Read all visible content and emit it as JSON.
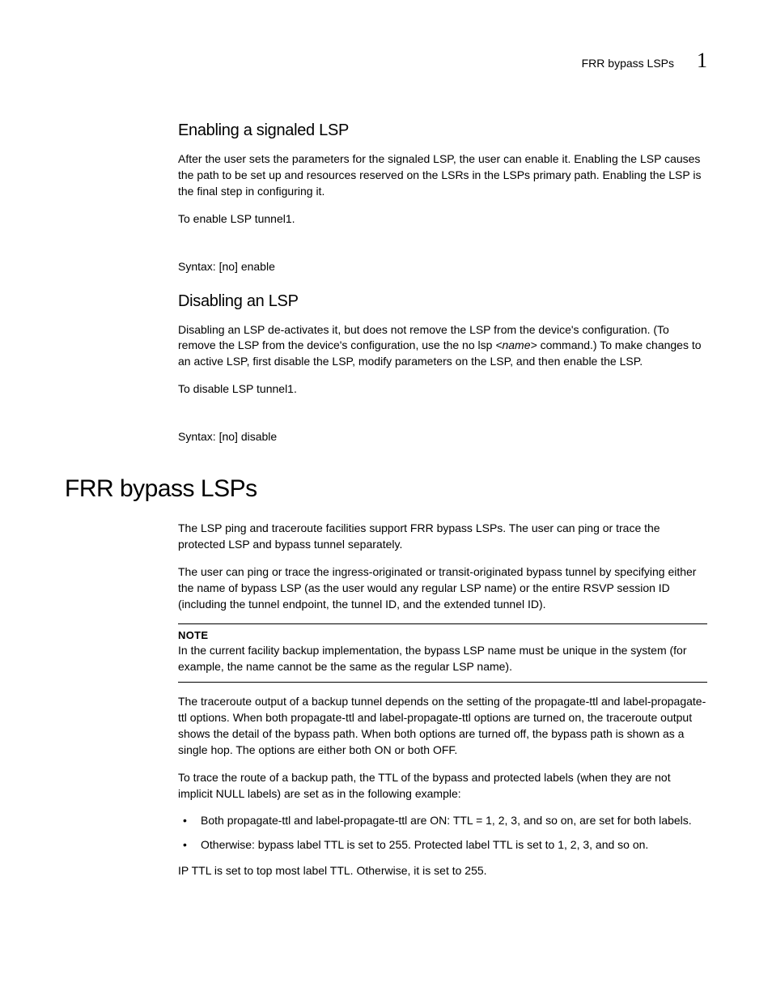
{
  "header": {
    "running_title": "FRR bypass LSPs",
    "chapter_number": "1"
  },
  "section1": {
    "heading": "Enabling a signaled LSP",
    "p1": "After the user sets the parameters for the signaled LSP, the user can enable it. Enabling the LSP causes the path to be set up and resources reserved on the LSRs in the LSPs primary path. Enabling the LSP is the final step in configuring it.",
    "p2": "To enable LSP tunnel1.",
    "syntax": "Syntax:  [no] enable"
  },
  "section2": {
    "heading": "Disabling an LSP",
    "p1_a": "Disabling an LSP de-activates it, but does not remove the LSP from the device's configuration. (To remove the LSP from the device's configuration, use the no lsp ",
    "p1_name": "<name>",
    "p1_b": " command.) To make changes to an active LSP, first disable the LSP, modify parameters on the LSP, and then enable the LSP.",
    "p2": "To disable LSP tunnel1.",
    "syntax": "Syntax:  [no] disable"
  },
  "section3": {
    "heading": "FRR bypass LSPs",
    "p1": "The LSP ping and traceroute facilities support FRR bypass LSPs. The user can ping or trace the protected LSP and bypass tunnel separately.",
    "p2": "The user can ping or trace the ingress-originated or transit-originated bypass tunnel by specifying either the name of bypass LSP (as the user would any regular LSP name) or the entire RSVP session ID (including the tunnel endpoint, the tunnel ID, and the extended tunnel ID).",
    "note_label": "NOTE",
    "note_body": "In the current facility backup implementation, the bypass LSP name must be unique in the system (for example, the name cannot be the same as the regular LSP name).",
    "p3": "The traceroute output of a backup tunnel depends on the setting of the propagate-ttl and label-propagate-ttl options. When both propagate-ttl and label-propagate-ttl options are turned on, the traceroute output shows the detail of the bypass path. When both options are turned off, the bypass path is shown as a single hop. The options are either both ON or both OFF.",
    "p4": "To trace the route of a backup path, the TTL of the bypass and protected labels (when they are not implicit NULL labels) are set as in the following example:",
    "bullets": [
      "Both propagate-ttl and label-propagate-ttl are ON: TTL = 1, 2, 3, and so on, are set for both labels.",
      "Otherwise: bypass label TTL is set to 255. Protected label TTL is set to 1, 2, 3, and so on."
    ],
    "p5": "IP TTL is set to top most label TTL. Otherwise, it is set to 255."
  }
}
